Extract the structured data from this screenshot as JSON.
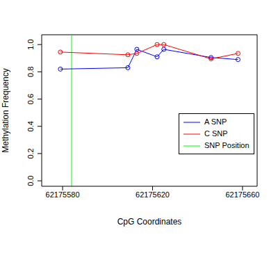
{
  "chart_data": {
    "type": "line",
    "x_label": "CpG Coordinates",
    "y_label": "Methylation Frequency",
    "x": [
      62175579,
      62175609,
      62175613,
      62175622,
      62175625,
      62175646,
      62175658
    ],
    "series": [
      {
        "name": "A SNP",
        "color": "#0000ff",
        "marker": "open_circle",
        "values": [
          0.82,
          0.83,
          0.965,
          0.91,
          0.965,
          0.905,
          0.89
        ]
      },
      {
        "name": "C SNP",
        "color": "#ff0000",
        "marker": "open_circle",
        "values": [
          0.945,
          0.925,
          0.935,
          1.0,
          1.0,
          0.895,
          0.935
        ]
      }
    ],
    "reference_lines": [
      {
        "name": "SNP Position",
        "x": 62175584,
        "color": "#00ff00"
      }
    ],
    "xlim": [
      62175570.7,
      62175666.5
    ],
    "xticks": [
      62175580,
      62175620,
      62175660
    ],
    "ylim": [
      -0.04,
      1.072
    ],
    "yticks": [
      {
        "value": 0,
        "label": "0.0"
      },
      0.2,
      0.4,
      0.6,
      0.8,
      {
        "value": 1,
        "label": "1.0"
      }
    ],
    "legend": "right",
    "grid": false
  }
}
